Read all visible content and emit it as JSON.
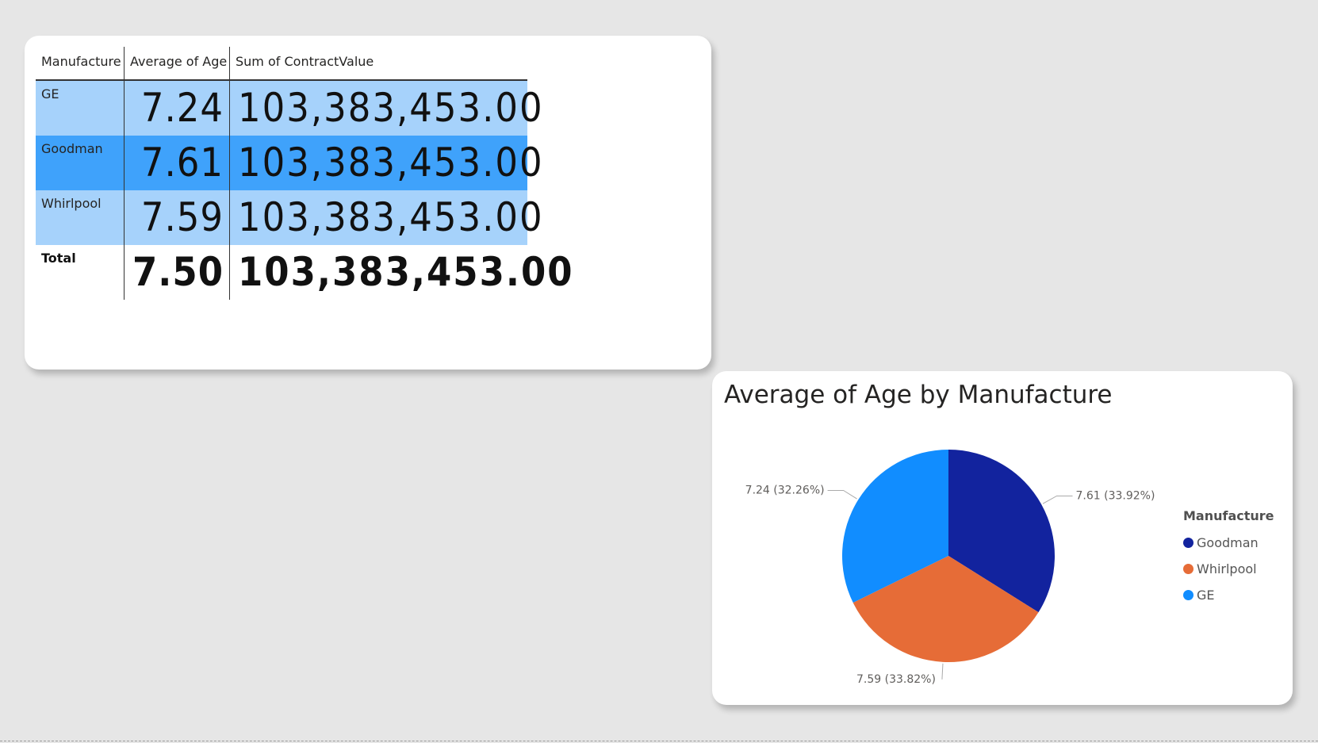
{
  "table": {
    "headers": [
      "Manufacture",
      "Average of Age",
      "Sum of ContractValue"
    ],
    "rows": [
      {
        "manufacture": "GE",
        "avg_age": "7.24",
        "sum_contract": "103,383,453.00",
        "shade": "light"
      },
      {
        "manufacture": "Goodman",
        "avg_age": "7.61",
        "sum_contract": "103,383,453.00",
        "shade": "dark"
      },
      {
        "manufacture": "Whirlpool",
        "avg_age": "7.59",
        "sum_contract": "103,383,453.00",
        "shade": "light"
      }
    ],
    "total": {
      "label": "Total",
      "avg_age": "7.50",
      "sum_contract": "103,383,453.00"
    }
  },
  "chart_data": {
    "type": "pie",
    "title": "Average of Age by Manufacture",
    "legend_title": "Manufacture",
    "legend_position": "right",
    "slices": [
      {
        "name": "Goodman",
        "value": 7.61,
        "percent": 33.92,
        "label": "7.61 (33.92%)",
        "color": "#12239e"
      },
      {
        "name": "Whirlpool",
        "value": 7.59,
        "percent": 33.82,
        "label": "7.59 (33.82%)",
        "color": "#e66c37"
      },
      {
        "name": "GE",
        "value": 7.24,
        "percent": 32.26,
        "label": "7.24 (32.26%)",
        "color": "#118dff"
      }
    ]
  }
}
